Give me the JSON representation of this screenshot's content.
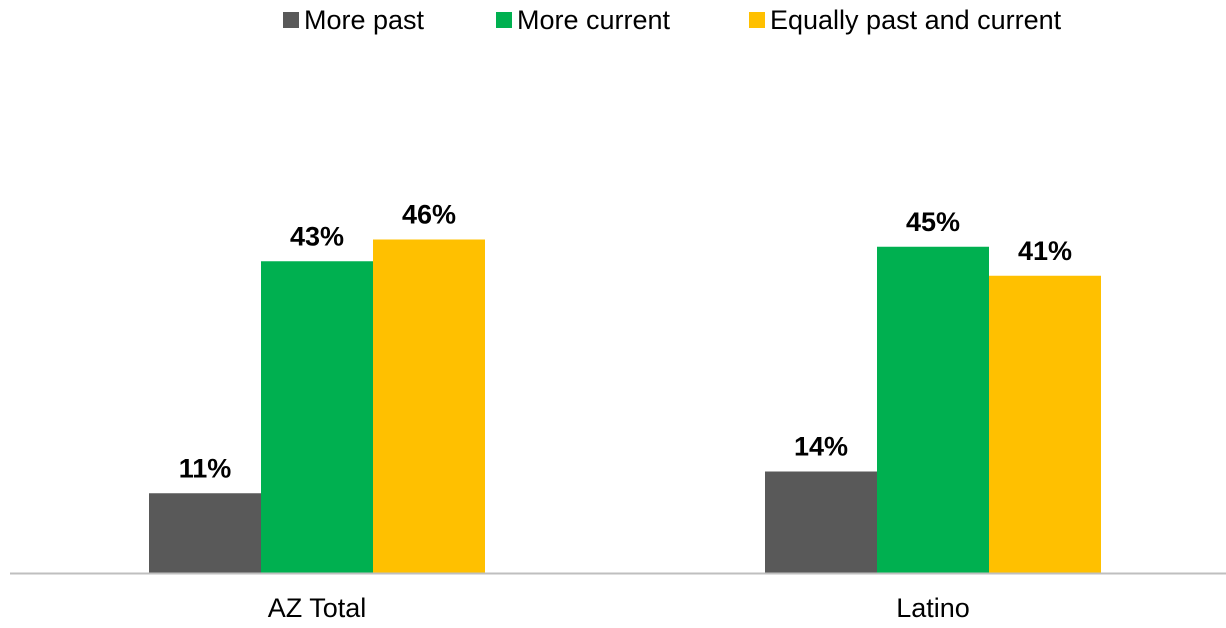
{
  "colors": {
    "more_past": "#595959",
    "more_current": "#00b050",
    "equally": "#ffc000",
    "axis": "#bfbfbf",
    "text": "#000000"
  },
  "legend": {
    "items": [
      {
        "label": "More past",
        "color": "#595959"
      },
      {
        "label": "More current",
        "color": "#00b050"
      },
      {
        "label": "Equally past and current",
        "color": "#ffc000"
      }
    ]
  },
  "chart_data": {
    "type": "bar",
    "title": "",
    "xlabel": "",
    "ylabel": "",
    "categories": [
      "AZ Total",
      "Latino"
    ],
    "series": [
      {
        "name": "More past",
        "values": [
          11,
          14
        ],
        "labels": [
          "11%",
          "14%"
        ],
        "color": "#595959"
      },
      {
        "name": "More current",
        "values": [
          43,
          45
        ],
        "labels": [
          "43%",
          "45%"
        ],
        "color": "#00b050"
      },
      {
        "name": "Equally past and current",
        "values": [
          46,
          41
        ],
        "labels": [
          "46%",
          "41%"
        ],
        "color": "#ffc000"
      }
    ],
    "ylim": [
      0,
      50
    ],
    "grid": false,
    "legend_position": "top"
  }
}
